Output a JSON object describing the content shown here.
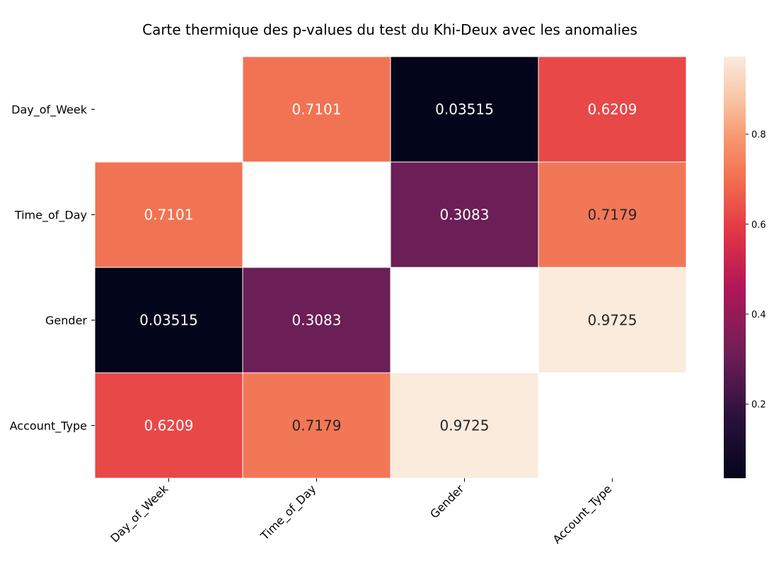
{
  "chart_data": {
    "type": "heatmap",
    "title": "Carte thermique des p-values du test du Khi-Deux avec les anomalies",
    "x_categories": [
      "Day_of_Week",
      "Time_of_Day",
      "Gender",
      "Account_Type"
    ],
    "y_categories": [
      "Day_of_Week",
      "Time_of_Day",
      "Gender",
      "Account_Type"
    ],
    "values": [
      [
        null,
        0.7101,
        0.03515,
        0.6209
      ],
      [
        0.7101,
        null,
        0.3083,
        0.7179
      ],
      [
        0.03515,
        0.3083,
        null,
        0.9725
      ],
      [
        0.6209,
        0.7179,
        0.9725,
        null
      ]
    ],
    "labels": [
      [
        "",
        "0.7101",
        "0.03515",
        "0.6209"
      ],
      [
        "0.7101",
        "",
        "0.3083",
        "0.7179"
      ],
      [
        "0.03515",
        "0.3083",
        "",
        "0.9725"
      ],
      [
        "0.6209",
        "0.7179",
        "0.9725",
        ""
      ]
    ],
    "colorbar": {
      "vmin": 0.03515,
      "vmax": 0.9725,
      "ticks": [
        0.2,
        0.4,
        0.6,
        0.8
      ],
      "tick_labels": [
        "0.2",
        "0.4",
        "0.6",
        "0.8"
      ],
      "colormap": "rocket"
    },
    "colors": {
      "light_text": "#ffffff",
      "dark_text": "#262626",
      "cell_border": "#ffffff"
    }
  }
}
